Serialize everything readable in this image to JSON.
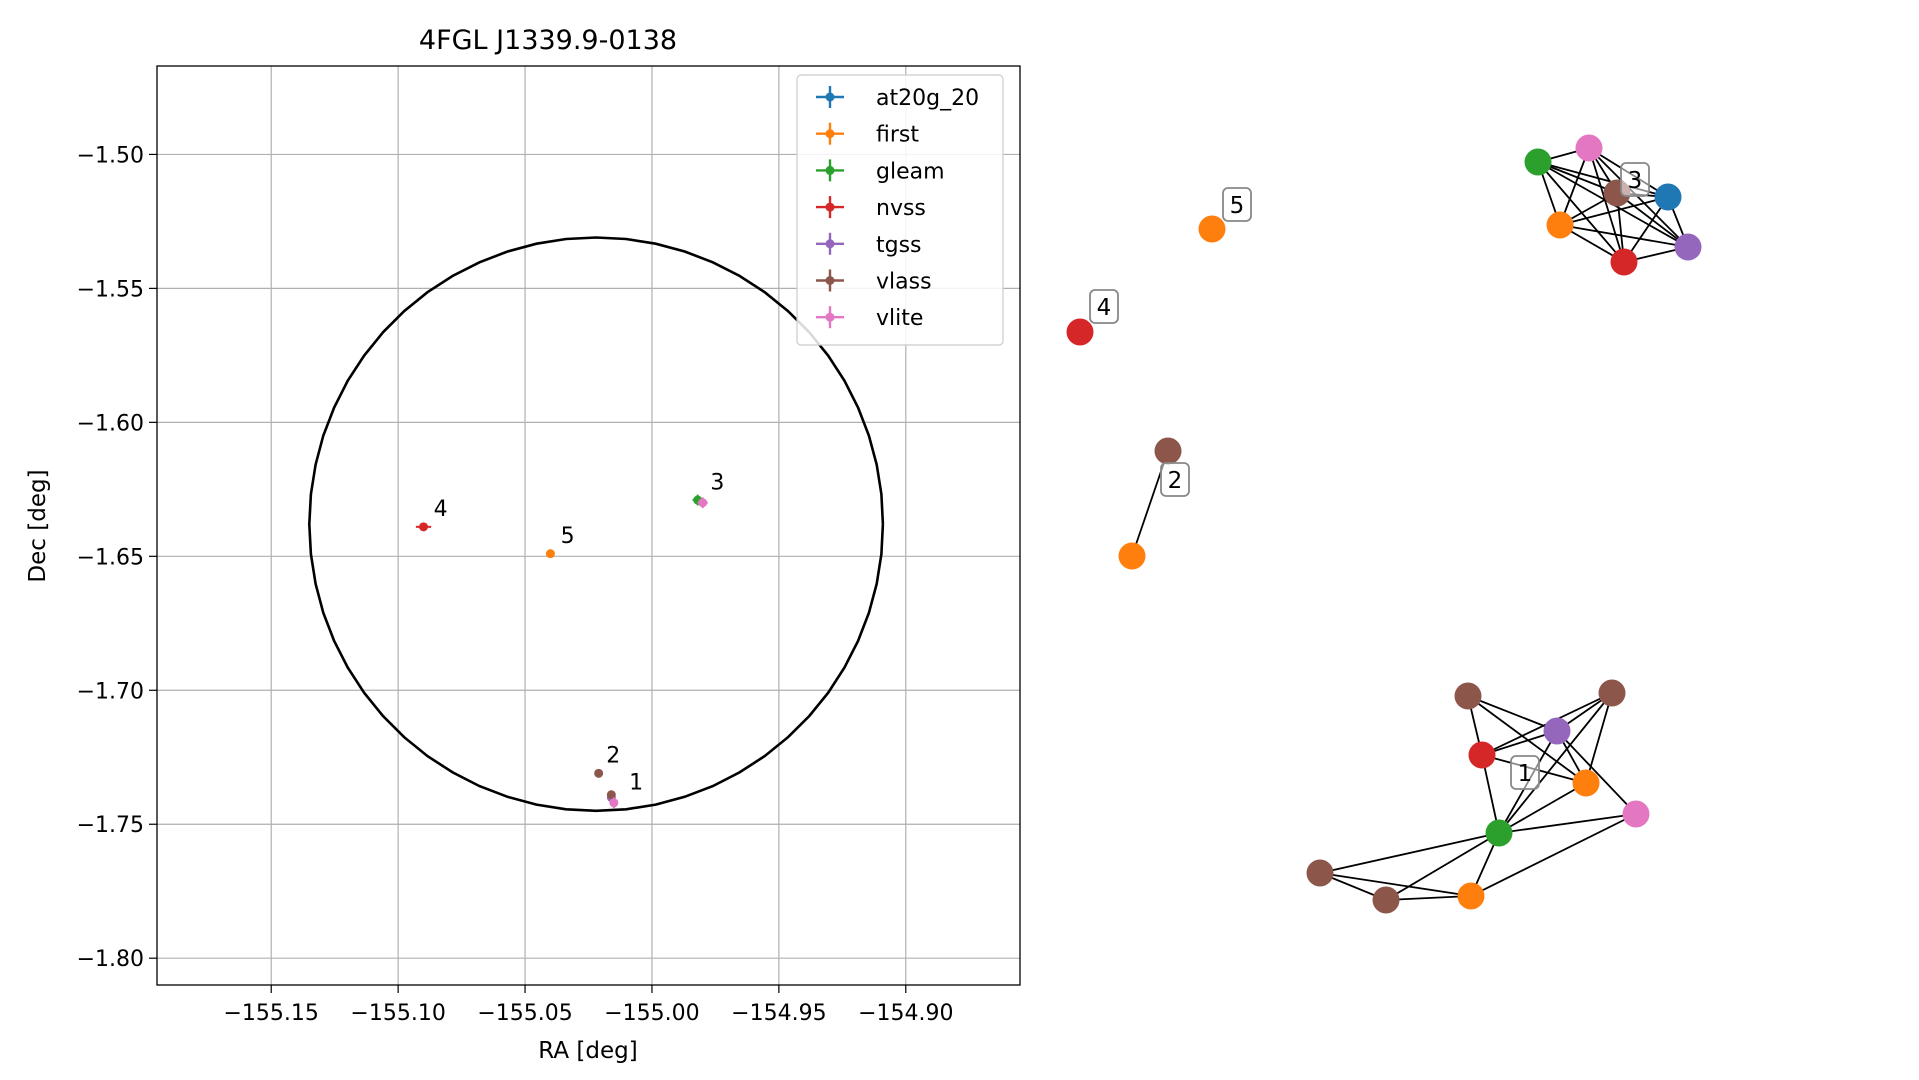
{
  "chart_data": [
    {
      "type": "scatter",
      "title": "4FGL J1339.9-0138",
      "xlabel": "RA [deg]",
      "ylabel": "Dec [deg]",
      "xlim": [
        -155.195,
        -154.855
      ],
      "ylim": [
        -1.81,
        -1.467
      ],
      "x_ticks": [
        -155.15,
        -155.1,
        -155.05,
        -155.0,
        -154.95,
        -154.9
      ],
      "y_ticks": [
        -1.5,
        -1.55,
        -1.6,
        -1.65,
        -1.7,
        -1.75,
        -1.8
      ],
      "x_tick_labels": [
        "−155.15",
        "−155.10",
        "−155.05",
        "−155.00",
        "−154.95",
        "−154.90"
      ],
      "y_tick_labels": [
        "−1.50",
        "−1.55",
        "−1.60",
        "−1.65",
        "−1.70",
        "−1.75",
        "−1.80"
      ],
      "grid": true,
      "legend_position": "top-right",
      "circle": {
        "center": [
          -155.022,
          -1.638
        ],
        "radius_ra": 0.113,
        "radius_dec": 0.107
      },
      "series": [
        {
          "name": "at20g_20",
          "color": "#1f77b4",
          "points": []
        },
        {
          "name": "first",
          "color": "#ff7f0e",
          "points": [
            [
              -155.04,
              -1.649,
              0.001,
              0.001
            ]
          ]
        },
        {
          "name": "gleam",
          "color": "#2ca02c",
          "points": [
            [
              -154.982,
              -1.629,
              0.002,
              0.002
            ]
          ]
        },
        {
          "name": "nvss",
          "color": "#d62728",
          "points": [
            [
              -155.09,
              -1.639,
              0.003,
              0.001
            ]
          ]
        },
        {
          "name": "tgss",
          "color": "#9467bd",
          "points": [
            [
              -155.016,
              -1.74,
              0.001,
              0.001
            ]
          ]
        },
        {
          "name": "vlass",
          "color": "#8c564b",
          "points": [
            [
              -155.021,
              -1.731,
              0.0,
              0.0
            ],
            [
              -155.016,
              -1.739,
              0.0,
              0.0
            ]
          ]
        },
        {
          "name": "vlite",
          "color": "#e377c2",
          "points": [
            [
              -154.98,
              -1.63,
              0.002,
              0.002
            ],
            [
              -155.015,
              -1.742,
              0.001,
              0.002
            ]
          ]
        }
      ],
      "annotations": [
        {
          "text": "1",
          "x": -155.009,
          "y": -1.737
        },
        {
          "text": "2",
          "x": -155.018,
          "y": -1.727
        },
        {
          "text": "3",
          "x": -154.977,
          "y": -1.625
        },
        {
          "text": "4",
          "x": -155.086,
          "y": -1.635
        },
        {
          "text": "5",
          "x": -155.036,
          "y": -1.645
        }
      ]
    },
    {
      "type": "network",
      "nodes": [
        {
          "id": "c3_gleam",
          "color": "#2ca02c"
        },
        {
          "id": "c3_vlite",
          "color": "#e377c2"
        },
        {
          "id": "c3_vlass",
          "color": "#8c564b"
        },
        {
          "id": "c3_at20g",
          "color": "#1f77b4"
        },
        {
          "id": "c3_first",
          "color": "#ff7f0e"
        },
        {
          "id": "c3_nvss",
          "color": "#d62728"
        },
        {
          "id": "c3_tgss",
          "color": "#9467bd"
        },
        {
          "id": "c5_first",
          "color": "#ff7f0e"
        },
        {
          "id": "c4_nvss",
          "color": "#d62728"
        },
        {
          "id": "c2_vlass",
          "color": "#8c564b"
        },
        {
          "id": "c2_first",
          "color": "#ff7f0e"
        },
        {
          "id": "c1_vlassA",
          "color": "#8c564b"
        },
        {
          "id": "c1_vlassB",
          "color": "#8c564b"
        },
        {
          "id": "c1_tgss",
          "color": "#9467bd"
        },
        {
          "id": "c1_nvss",
          "color": "#d62728"
        },
        {
          "id": "c1_firstA",
          "color": "#ff7f0e"
        },
        {
          "id": "c1_vlite",
          "color": "#e377c2"
        },
        {
          "id": "c1_gleam",
          "color": "#2ca02c"
        },
        {
          "id": "c1_vlassC",
          "color": "#8c564b"
        },
        {
          "id": "c1_vlassD",
          "color": "#8c564b"
        },
        {
          "id": "c1_firstB",
          "color": "#ff7f0e"
        }
      ],
      "edges": [
        [
          "c3_gleam",
          "c3_vlite"
        ],
        [
          "c3_gleam",
          "c3_vlass"
        ],
        [
          "c3_gleam",
          "c3_at20g"
        ],
        [
          "c3_gleam",
          "c3_first"
        ],
        [
          "c3_gleam",
          "c3_nvss"
        ],
        [
          "c3_gleam",
          "c3_tgss"
        ],
        [
          "c3_vlite",
          "c3_vlass"
        ],
        [
          "c3_vlite",
          "c3_at20g"
        ],
        [
          "c3_vlite",
          "c3_first"
        ],
        [
          "c3_vlite",
          "c3_nvss"
        ],
        [
          "c3_vlite",
          "c3_tgss"
        ],
        [
          "c3_vlass",
          "c3_at20g"
        ],
        [
          "c3_vlass",
          "c3_first"
        ],
        [
          "c3_vlass",
          "c3_nvss"
        ],
        [
          "c3_vlass",
          "c3_tgss"
        ],
        [
          "c3_at20g",
          "c3_first"
        ],
        [
          "c3_at20g",
          "c3_nvss"
        ],
        [
          "c3_at20g",
          "c3_tgss"
        ],
        [
          "c3_first",
          "c3_nvss"
        ],
        [
          "c3_first",
          "c3_tgss"
        ],
        [
          "c3_nvss",
          "c3_tgss"
        ],
        [
          "c2_vlass",
          "c2_first"
        ],
        [
          "c1_vlassA",
          "c1_tgss"
        ],
        [
          "c1_vlassA",
          "c1_firstA"
        ],
        [
          "c1_vlassA",
          "c1_nvss"
        ],
        [
          "c1_vlassB",
          "c1_tgss"
        ],
        [
          "c1_vlassB",
          "c1_nvss"
        ],
        [
          "c1_vlassB",
          "c1_gleam"
        ],
        [
          "c1_vlassB",
          "c1_firstA"
        ],
        [
          "c1_tgss",
          "c1_nvss"
        ],
        [
          "c1_tgss",
          "c1_gleam"
        ],
        [
          "c1_tgss",
          "c1_firstA"
        ],
        [
          "c1_tgss",
          "c1_vlite"
        ],
        [
          "c1_nvss",
          "c1_firstA"
        ],
        [
          "c1_nvss",
          "c1_gleam"
        ],
        [
          "c1_firstA",
          "c1_gleam"
        ],
        [
          "c1_gleam",
          "c1_vlite"
        ],
        [
          "c1_gleam",
          "c1_vlassC"
        ],
        [
          "c1_gleam",
          "c1_vlassD"
        ],
        [
          "c1_gleam",
          "c1_firstB"
        ],
        [
          "c1_vlite",
          "c1_firstB"
        ],
        [
          "c1_vlassC",
          "c1_vlassD"
        ],
        [
          "c1_vlassC",
          "c1_firstB"
        ],
        [
          "c1_vlassD",
          "c1_firstB"
        ]
      ],
      "labels": [
        {
          "text": "1",
          "near": "c1"
        },
        {
          "text": "2",
          "near": "c2"
        },
        {
          "text": "3",
          "near": "c3"
        },
        {
          "text": "4",
          "near": "c4"
        },
        {
          "text": "5",
          "near": "c5"
        }
      ]
    }
  ]
}
